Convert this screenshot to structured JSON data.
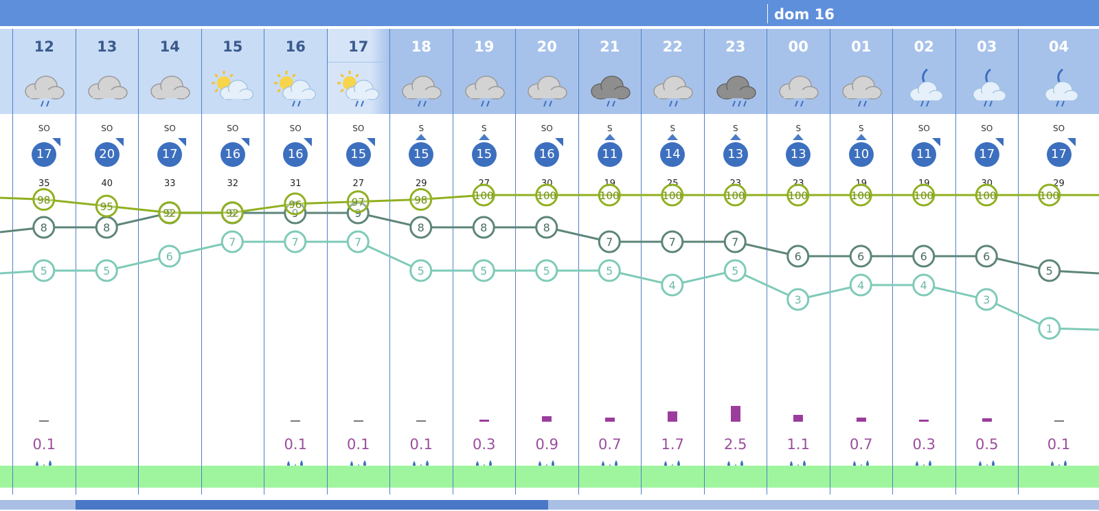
{
  "header": {
    "day_label": "dom 16"
  },
  "columns": [
    {
      "hour": "12",
      "icon": "cloud-rain-icon",
      "dir": "SO",
      "speed": "17",
      "gust": "35",
      "rain": "0.1",
      "bar": 0.1
    },
    {
      "hour": "13",
      "icon": "cloud-icon",
      "dir": "SO",
      "speed": "20",
      "gust": "40",
      "rain": "",
      "bar": 0
    },
    {
      "hour": "14",
      "icon": "cloud-icon",
      "dir": "SO",
      "speed": "17",
      "gust": "33",
      "rain": "",
      "bar": 0
    },
    {
      "hour": "15",
      "icon": "sun-cloud-icon",
      "dir": "SO",
      "speed": "16",
      "gust": "32",
      "rain": "",
      "bar": 0
    },
    {
      "hour": "16",
      "icon": "sun-cloud-rain-icon",
      "dir": "SO",
      "speed": "16",
      "gust": "31",
      "rain": "0.1",
      "bar": 0.1
    },
    {
      "hour": "17",
      "icon": "sun-cloud-rain-icon",
      "dir": "SO",
      "speed": "15",
      "gust": "27",
      "rain": "0.1",
      "bar": 0.1
    },
    {
      "hour": "18",
      "icon": "cloud-rain-icon",
      "dir": "S",
      "speed": "15",
      "gust": "29",
      "rain": "0.1",
      "bar": 0.1
    },
    {
      "hour": "19",
      "icon": "cloud-rain-icon",
      "dir": "S",
      "speed": "15",
      "gust": "27",
      "rain": "0.3",
      "bar": 0.3
    },
    {
      "hour": "20",
      "icon": "cloud-rain-icon",
      "dir": "SO",
      "speed": "16",
      "gust": "30",
      "rain": "0.9",
      "bar": 0.9
    },
    {
      "hour": "21",
      "icon": "dark-cloud-rain-icon",
      "dir": "S",
      "speed": "11",
      "gust": "19",
      "rain": "0.7",
      "bar": 0.7
    },
    {
      "hour": "22",
      "icon": "cloud-rain-icon",
      "dir": "S",
      "speed": "14",
      "gust": "25",
      "rain": "1.7",
      "bar": 1.7
    },
    {
      "hour": "23",
      "icon": "dark-cloud-heavy-rain-icon",
      "dir": "S",
      "speed": "13",
      "gust": "23",
      "rain": "2.5",
      "bar": 2.5
    },
    {
      "hour": "00",
      "icon": "cloud-rain-icon",
      "dir": "S",
      "speed": "13",
      "gust": "23",
      "rain": "1.1",
      "bar": 1.1
    },
    {
      "hour": "01",
      "icon": "cloud-rain-icon",
      "dir": "S",
      "speed": "10",
      "gust": "19",
      "rain": "0.7",
      "bar": 0.7
    },
    {
      "hour": "02",
      "icon": "moon-cloud-rain-icon",
      "dir": "SO",
      "speed": "11",
      "gust": "19",
      "rain": "0.3",
      "bar": 0.3
    },
    {
      "hour": "03",
      "icon": "moon-cloud-rain-icon",
      "dir": "SO",
      "speed": "17",
      "gust": "30",
      "rain": "0.5",
      "bar": 0.5
    },
    {
      "hour": "04",
      "icon": "moon-cloud-rain-icon",
      "dir": "SO",
      "speed": "17",
      "gust": "29",
      "rain": "0.1",
      "bar": 0.1
    }
  ],
  "series": {
    "humidity": {
      "color": "#8fb020",
      "values": [
        98,
        95,
        92,
        92,
        96,
        97,
        98,
        100,
        100,
        100,
        100,
        100,
        100,
        100,
        100,
        100,
        100
      ]
    },
    "temperature": {
      "color": "#5c8578",
      "values": [
        8,
        8,
        9,
        9,
        9,
        9,
        8,
        8,
        8,
        7,
        7,
        7,
        6,
        6,
        6,
        6,
        5
      ]
    },
    "dewpoint": {
      "color": "#7ecab8",
      "values": [
        5,
        5,
        6,
        7,
        7,
        7,
        5,
        5,
        5,
        5,
        4,
        5,
        3,
        4,
        4,
        3,
        1
      ]
    }
  }
}
